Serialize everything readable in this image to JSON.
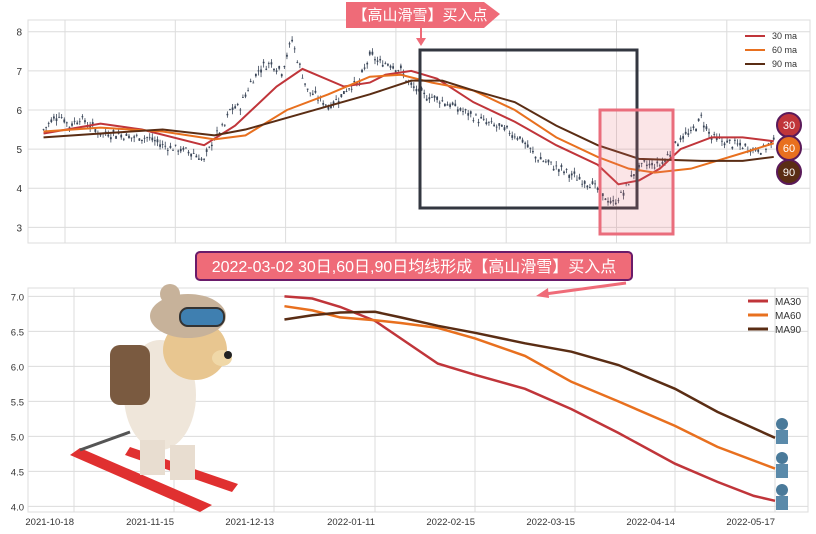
{
  "colors": {
    "ma30": "#c0353a",
    "ma60": "#e8701f",
    "ma90": "#5a2d14",
    "candle": "#3a4658",
    "annotation_bg": "#ef6b78",
    "annotation_border": "#6a1b6a",
    "box_dark": "#333740",
    "box_pink": "#ea6d7c"
  },
  "annotations": {
    "top_label": "【高山滑雪】买入点",
    "bottom_label": "2022-03-02 30日,60日,90日均线形成【高山滑雪】买入点",
    "badge_30": "30",
    "badge_60": "60",
    "badge_90": "90"
  },
  "chart_data": [
    {
      "type": "line",
      "title": "",
      "ylim": [
        2.6,
        8.3
      ],
      "xlim": [
        -3,
        148
      ],
      "yticks": [
        "3",
        "4",
        "5",
        "6",
        "7",
        "8"
      ],
      "grid": true,
      "legend_placement": "top-right",
      "price_close": [
        [
          0,
          5.5
        ],
        [
          2,
          5.8
        ],
        [
          3,
          5.9
        ],
        [
          5,
          5.6
        ],
        [
          7,
          5.8
        ],
        [
          9,
          5.6
        ],
        [
          11,
          5.4
        ],
        [
          14,
          5.4
        ],
        [
          17,
          5.3
        ],
        [
          20,
          5.3
        ],
        [
          23,
          5.1
        ],
        [
          26,
          5.0
        ],
        [
          29,
          4.9
        ],
        [
          31,
          4.7
        ],
        [
          33,
          5.3
        ],
        [
          35,
          5.6
        ],
        [
          36,
          6.0
        ],
        [
          38,
          6.1
        ],
        [
          40,
          6.7
        ],
        [
          42,
          7.1
        ],
        [
          44,
          7.2
        ],
        [
          46,
          7.0
        ],
        [
          48,
          7.8
        ],
        [
          49,
          7.3
        ],
        [
          51,
          6.5
        ],
        [
          53,
          6.3
        ],
        [
          55,
          6.1
        ],
        [
          57,
          6.3
        ],
        [
          59,
          6.6
        ],
        [
          61,
          6.7
        ],
        [
          63,
          7.4
        ],
        [
          65,
          7.2
        ],
        [
          67,
          7.2
        ],
        [
          69,
          7.0
        ],
        [
          71,
          6.6
        ],
        [
          73,
          6.4
        ],
        [
          76,
          6.3
        ],
        [
          79,
          6.1
        ],
        [
          82,
          5.9
        ],
        [
          85,
          5.7
        ],
        [
          87,
          5.6
        ],
        [
          89,
          5.5
        ],
        [
          92,
          5.3
        ],
        [
          95,
          4.8
        ],
        [
          98,
          4.6
        ],
        [
          101,
          4.4
        ],
        [
          104,
          4.2
        ],
        [
          106,
          4.1
        ],
        [
          108,
          3.8
        ],
        [
          110,
          3.6
        ],
        [
          112,
          3.9
        ],
        [
          114,
          4.4
        ],
        [
          116,
          4.6
        ],
        [
          119,
          4.6
        ],
        [
          121,
          4.9
        ],
        [
          123,
          5.3
        ],
        [
          125,
          5.4
        ],
        [
          127,
          5.8
        ],
        [
          129,
          5.3
        ],
        [
          131,
          5.2
        ],
        [
          134,
          5.1
        ],
        [
          137,
          5.0
        ],
        [
          139,
          5.0
        ],
        [
          141,
          5.2
        ]
      ],
      "series": [
        {
          "name": "30 ma",
          "values": [
            [
              0,
              5.4
            ],
            [
              11,
              5.65
            ],
            [
              19,
              5.5
            ],
            [
              31,
              5.1
            ],
            [
              37,
              5.6
            ],
            [
              45,
              6.6
            ],
            [
              50,
              7.05
            ],
            [
              58,
              6.6
            ],
            [
              63,
              6.7
            ],
            [
              66,
              6.9
            ],
            [
              71,
              7.0
            ],
            [
              76,
              6.8
            ],
            [
              83,
              6.2
            ],
            [
              91,
              5.7
            ],
            [
              99,
              5.1
            ],
            [
              107,
              4.6
            ],
            [
              111,
              4.1
            ],
            [
              115,
              4.2
            ],
            [
              119,
              4.5
            ],
            [
              123,
              5.0
            ],
            [
              129,
              5.3
            ],
            [
              135,
              5.3
            ],
            [
              141,
              5.2
            ]
          ]
        },
        {
          "name": "60 ma",
          "values": [
            [
              0,
              5.45
            ],
            [
              11,
              5.55
            ],
            [
              23,
              5.45
            ],
            [
              33,
              5.25
            ],
            [
              39,
              5.35
            ],
            [
              47,
              6.0
            ],
            [
              55,
              6.4
            ],
            [
              63,
              6.85
            ],
            [
              69,
              6.9
            ],
            [
              75,
              6.7
            ],
            [
              83,
              6.5
            ],
            [
              91,
              6.0
            ],
            [
              99,
              5.3
            ],
            [
              107,
              4.8
            ],
            [
              113,
              4.5
            ],
            [
              118,
              4.4
            ],
            [
              125,
              4.5
            ],
            [
              135,
              4.9
            ],
            [
              141,
              5.15
            ]
          ]
        },
        {
          "name": "90 ma",
          "values": [
            [
              0,
              5.3
            ],
            [
              11,
              5.4
            ],
            [
              23,
              5.5
            ],
            [
              33,
              5.35
            ],
            [
              39,
              5.5
            ],
            [
              47,
              5.8
            ],
            [
              55,
              6.1
            ],
            [
              63,
              6.4
            ],
            [
              71,
              6.75
            ],
            [
              77,
              6.75
            ],
            [
              83,
              6.5
            ],
            [
              91,
              6.2
            ],
            [
              99,
              5.6
            ],
            [
              107,
              5.1
            ],
            [
              115,
              4.75
            ],
            [
              127,
              4.7
            ],
            [
              135,
              4.7
            ],
            [
              141,
              4.8
            ]
          ]
        }
      ]
    },
    {
      "type": "line",
      "title": "",
      "ylim": [
        3.92,
        7.12
      ],
      "yticks": [
        "4.0",
        "4.5",
        "5.0",
        "5.5",
        "6.0",
        "6.5",
        "7.0"
      ],
      "xticks": [
        "2021-10-18",
        "2021-11-15",
        "2021-12-13",
        "2022-01-11",
        "2022-02-15",
        "2022-03-15",
        "2022-04-14",
        "2022-05-17"
      ],
      "grid": true,
      "legend_placement": "top-right",
      "series": [
        {
          "name": "MA30",
          "values": [
            [
              "2021-12-16",
              7.0
            ],
            [
              "2021-12-24",
              6.97
            ],
            [
              "2022-01-01",
              6.85
            ],
            [
              "2022-01-11",
              6.65
            ],
            [
              "2022-01-20",
              6.4
            ],
            [
              "2022-02-02",
              6.04
            ],
            [
              "2022-02-15",
              5.88
            ],
            [
              "2022-03-01",
              5.68
            ],
            [
              "2022-03-14",
              5.39
            ],
            [
              "2022-03-28",
              5.05
            ],
            [
              "2022-04-14",
              4.61
            ],
            [
              "2022-04-28",
              4.35
            ],
            [
              "2022-05-10",
              4.15
            ],
            [
              "2022-05-17",
              4.08
            ]
          ]
        },
        {
          "name": "MA60",
          "values": [
            [
              "2021-12-16",
              6.86
            ],
            [
              "2021-12-24",
              6.8
            ],
            [
              "2022-01-01",
              6.7
            ],
            [
              "2022-01-11",
              6.66
            ],
            [
              "2022-01-20",
              6.62
            ],
            [
              "2022-02-02",
              6.55
            ],
            [
              "2022-02-15",
              6.4
            ],
            [
              "2022-03-01",
              6.15
            ],
            [
              "2022-03-14",
              5.78
            ],
            [
              "2022-03-28",
              5.5
            ],
            [
              "2022-04-14",
              5.15
            ],
            [
              "2022-04-28",
              4.85
            ],
            [
              "2022-05-17",
              4.54
            ]
          ]
        },
        {
          "name": "MA90",
          "values": [
            [
              "2021-12-16",
              6.67
            ],
            [
              "2021-12-24",
              6.73
            ],
            [
              "2022-01-01",
              6.77
            ],
            [
              "2022-01-11",
              6.78
            ],
            [
              "2022-01-20",
              6.7
            ],
            [
              "2022-02-02",
              6.58
            ],
            [
              "2022-02-15",
              6.48
            ],
            [
              "2022-03-01",
              6.33
            ],
            [
              "2022-03-14",
              6.21
            ],
            [
              "2022-03-28",
              6.02
            ],
            [
              "2022-04-14",
              5.68
            ],
            [
              "2022-04-28",
              5.35
            ],
            [
              "2022-05-17",
              4.98
            ]
          ]
        }
      ]
    }
  ]
}
